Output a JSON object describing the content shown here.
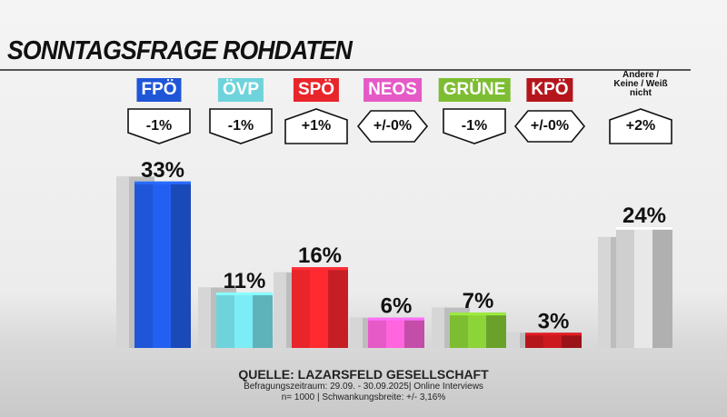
{
  "title": "SONNTAGSFRAGE ROHDATEN",
  "chart_data": {
    "type": "bar",
    "title": "SONNTAGSFRAGE ROHDATEN",
    "categories": [
      "FPÖ",
      "ÖVP",
      "SPÖ",
      "NEOS",
      "GRÜNE",
      "KPÖ",
      "Andere / Keine / Weiß nicht"
    ],
    "values": [
      33,
      11,
      16,
      6,
      7,
      3,
      24
    ],
    "value_labels": [
      "33%",
      "11%",
      "16%",
      "6%",
      "7%",
      "3%",
      "24%"
    ],
    "changes": [
      "-1%",
      "-1%",
      "+1%",
      "+/-0%",
      "-1%",
      "+/-0%",
      "+2%"
    ],
    "change_direction": [
      "down",
      "down",
      "up",
      "flat",
      "down",
      "flat",
      "up"
    ],
    "previous_values": [
      34,
      12,
      15,
      6,
      8,
      3,
      22
    ],
    "colors": [
      "#1f56d8",
      "#6fd3dc",
      "#e8252b",
      "#e55ac6",
      "#7dbd32",
      "#b5161c",
      "#cfcfcf"
    ],
    "ylim": [
      0,
      36
    ]
  },
  "source": {
    "line1": "QUELLE: LAZARSFELD GESELLSCHAFT",
    "line2": "Befragungszeitraum: 29.09. - 30.09.2025| Online Interviews",
    "line3": "n= 1000 | Schwankungsbreite: +/- 3,16%"
  }
}
